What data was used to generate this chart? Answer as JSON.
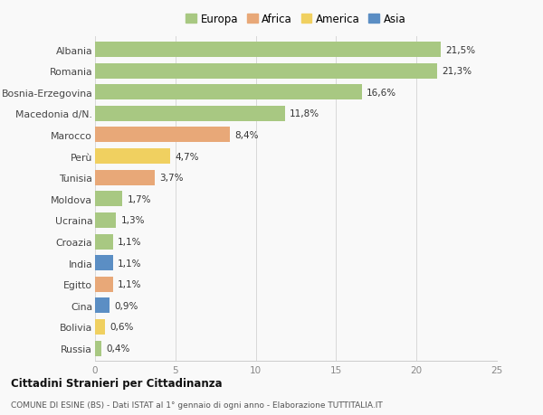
{
  "countries": [
    "Albania",
    "Romania",
    "Bosnia-Erzegovina",
    "Macedonia d/N.",
    "Marocco",
    "Perù",
    "Tunisia",
    "Moldova",
    "Ucraina",
    "Croazia",
    "India",
    "Egitto",
    "Cina",
    "Bolivia",
    "Russia"
  ],
  "values": [
    21.5,
    21.3,
    16.6,
    11.8,
    8.4,
    4.7,
    3.7,
    1.7,
    1.3,
    1.1,
    1.1,
    1.1,
    0.9,
    0.6,
    0.4
  ],
  "labels": [
    "21,5%",
    "21,3%",
    "16,6%",
    "11,8%",
    "8,4%",
    "4,7%",
    "3,7%",
    "1,7%",
    "1,3%",
    "1,1%",
    "1,1%",
    "1,1%",
    "0,9%",
    "0,6%",
    "0,4%"
  ],
  "continents": [
    "Europa",
    "Europa",
    "Europa",
    "Europa",
    "Africa",
    "America",
    "Africa",
    "Europa",
    "Europa",
    "Europa",
    "Asia",
    "Africa",
    "Asia",
    "America",
    "Europa"
  ],
  "continent_colors": {
    "Europa": "#a8c882",
    "Africa": "#e8a878",
    "America": "#f0d060",
    "Asia": "#5b8ec4"
  },
  "legend_order": [
    "Europa",
    "Africa",
    "America",
    "Asia"
  ],
  "xlim": [
    0,
    25
  ],
  "xticks": [
    0,
    5,
    10,
    15,
    20,
    25
  ],
  "background_color": "#f9f9f9",
  "title1": "Cittadini Stranieri per Cittadinanza",
  "title2": "COMUNE DI ESINE (BS) - Dati ISTAT al 1° gennaio di ogni anno - Elaborazione TUTTITALIA.IT",
  "bar_height": 0.72
}
